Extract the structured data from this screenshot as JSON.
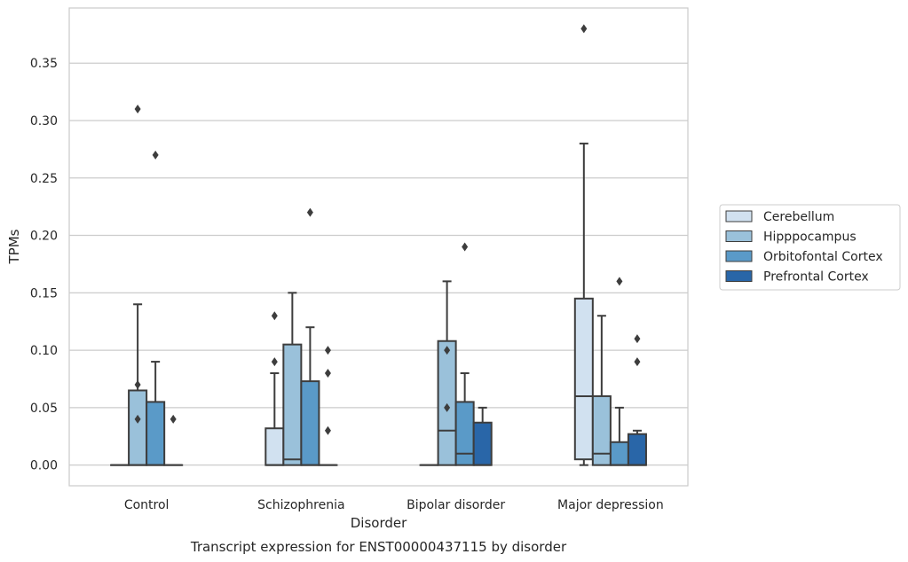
{
  "chart_data": {
    "type": "box",
    "title": "",
    "caption": "Transcript expression for ENST00000437115 by disorder",
    "xlabel": "Disorder",
    "ylabel": "TPMs",
    "ylim": [
      -0.018,
      0.398
    ],
    "yticks": [
      0.0,
      0.05,
      0.1,
      0.15,
      0.2,
      0.25,
      0.3,
      0.35
    ],
    "ytick_labels": [
      "0.00",
      "0.05",
      "0.10",
      "0.15",
      "0.20",
      "0.25",
      "0.30",
      "0.35"
    ],
    "grid": true,
    "legend_position": "right",
    "categories": [
      "Control",
      "Schizophrenia",
      "Bipolar disorder",
      "Major depression"
    ],
    "series": [
      {
        "name": "Cerebellum",
        "color": "#d1e1f0",
        "boxes": [
          {
            "min": 0,
            "q1": 0,
            "median": 0,
            "q3": 0,
            "max": 0,
            "outliers": []
          },
          {
            "min": 0,
            "q1": 0,
            "median": 0,
            "q3": 0.032,
            "max": 0.08,
            "outliers": [
              0.09,
              0.13
            ]
          },
          {
            "min": 0,
            "q1": 0,
            "median": 0,
            "q3": 0,
            "max": 0,
            "outliers": []
          },
          {
            "min": 0,
            "q1": 0.005,
            "median": 0.06,
            "q3": 0.145,
            "max": 0.28,
            "outliers": [
              0.38
            ]
          }
        ]
      },
      {
        "name": "Hipppocampus",
        "color": "#9ac1da",
        "boxes": [
          {
            "min": 0,
            "q1": 0,
            "median": 0,
            "q3": 0.065,
            "max": 0.14,
            "outliers": [
              0.04,
              0.07,
              0.31
            ]
          },
          {
            "min": 0,
            "q1": 0,
            "median": 0.005,
            "q3": 0.105,
            "max": 0.15,
            "outliers": []
          },
          {
            "min": 0,
            "q1": 0,
            "median": 0.03,
            "q3": 0.108,
            "max": 0.16,
            "outliers": [
              0.05,
              0.1
            ]
          },
          {
            "min": 0,
            "q1": 0,
            "median": 0.01,
            "q3": 0.06,
            "max": 0.13,
            "outliers": []
          }
        ]
      },
      {
        "name": "Orbitofontal Cortex",
        "color": "#5a9ac8",
        "boxes": [
          {
            "min": 0,
            "q1": 0,
            "median": 0,
            "q3": 0.055,
            "max": 0.09,
            "outliers": [
              0.27
            ]
          },
          {
            "min": 0,
            "q1": 0,
            "median": 0,
            "q3": 0.073,
            "max": 0.12,
            "outliers": [
              0.22
            ]
          },
          {
            "min": 0,
            "q1": 0,
            "median": 0.01,
            "q3": 0.055,
            "max": 0.08,
            "outliers": [
              0.19
            ]
          },
          {
            "min": 0,
            "q1": 0,
            "median": 0,
            "q3": 0.02,
            "max": 0.05,
            "outliers": [
              0.16
            ]
          }
        ]
      },
      {
        "name": "Prefrontal Cortex",
        "color": "#2966a8",
        "boxes": [
          {
            "min": 0,
            "q1": 0,
            "median": 0,
            "q3": 0,
            "max": 0,
            "outliers": [
              0.04
            ]
          },
          {
            "min": 0,
            "q1": 0,
            "median": 0,
            "q3": 0,
            "max": 0,
            "outliers": [
              0.03,
              0.08,
              0.1
            ]
          },
          {
            "min": 0,
            "q1": 0,
            "median": 0,
            "q3": 0.037,
            "max": 0.05,
            "outliers": []
          },
          {
            "min": 0,
            "q1": 0,
            "median": 0,
            "q3": 0.027,
            "max": 0.03,
            "outliers": [
              0.09,
              0.11
            ]
          }
        ]
      }
    ]
  }
}
